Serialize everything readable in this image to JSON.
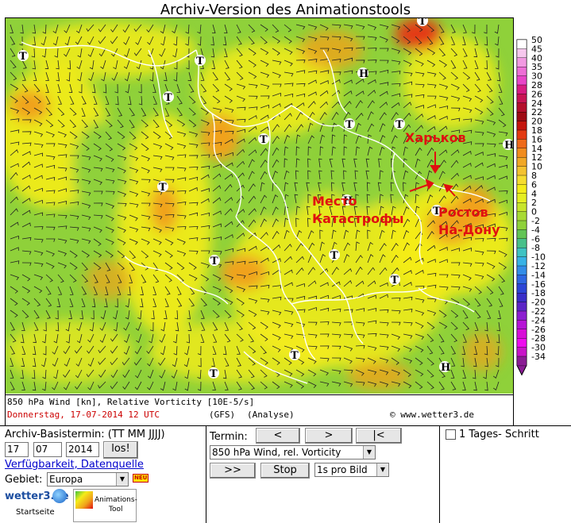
{
  "page_title": "Archiv-Version des Animationstools",
  "map": {
    "caption_line1": "850 hPa Wind [kn], Relative Vorticity [10E-5/s]",
    "caption_date": "Donnerstag, 17-07-2014  12 UTC",
    "caption_model": "(GFS)",
    "caption_mode": "(Analyse)",
    "copyright": "© www.wetter3.de",
    "labels": {
      "kharkov": "Харьков",
      "crash_line1": "Место",
      "crash_line2": "Катастрофы",
      "rostov_line1": "Ростов",
      "rostov_line2": "На-Дону"
    },
    "pressure_markers": {
      "low": "T",
      "high": "H"
    },
    "colors": {
      "green": "#8fd13a",
      "yellow": "#f5ec1a",
      "orange": "#f0a21c",
      "red": "#e01010"
    }
  },
  "scale": {
    "values": [
      "50",
      "45",
      "40",
      "35",
      "30",
      "28",
      "26",
      "24",
      "22",
      "20",
      "18",
      "16",
      "14",
      "12",
      "10",
      "8",
      "6",
      "4",
      "2",
      "0",
      "-2",
      "-4",
      "-6",
      "-8",
      "-10",
      "-12",
      "-14",
      "-16",
      "-18",
      "-20",
      "-22",
      "-24",
      "-26",
      "-28",
      "-30",
      "-34"
    ],
    "colors": [
      "#ffffff",
      "#f7c8ee",
      "#f29ae2",
      "#ed6fd6",
      "#e845c8",
      "#d81c82",
      "#c81454",
      "#b40f2c",
      "#9e0b14",
      "#c4150e",
      "#e33a12",
      "#ef6a1a",
      "#f18c1e",
      "#f1a726",
      "#f4c230",
      "#f6dc30",
      "#f5ec1a",
      "#e6ee22",
      "#c8e52c",
      "#a8da34",
      "#8fd13a",
      "#62c455",
      "#48c08a",
      "#3fc3c3",
      "#38b2e6",
      "#338de8",
      "#2e67e2",
      "#2c45d6",
      "#3a2ec8",
      "#5c25c6",
      "#8c1ed0",
      "#b614d6",
      "#d80ed8",
      "#ee0cee",
      "#c814c8",
      "#8a1c94"
    ]
  },
  "controls": {
    "archiv_label": "Archiv-Basistermin: (TT MM JJJJ)",
    "day": "17",
    "month": "07",
    "year": "2014",
    "go_button": "los!",
    "availability_link": "Verfügbarkeit, Datenquelle",
    "region_label": "Gebiet:",
    "region_value": "Europa",
    "new_badge": "NEU",
    "logo_sub": "Startseite",
    "tool_label_1": "Animations-",
    "tool_label_2": "Tool",
    "termin_label": "Termin:",
    "prev_button": "<",
    "next_button": ">",
    "first_button": "|<",
    "product_value": "850 hPa Wind, rel. Vorticity",
    "play_button": ">>",
    "stop_button": "Stop",
    "speed_value": "1s pro Bild",
    "tages_label": "1 Tages- Schritt"
  }
}
